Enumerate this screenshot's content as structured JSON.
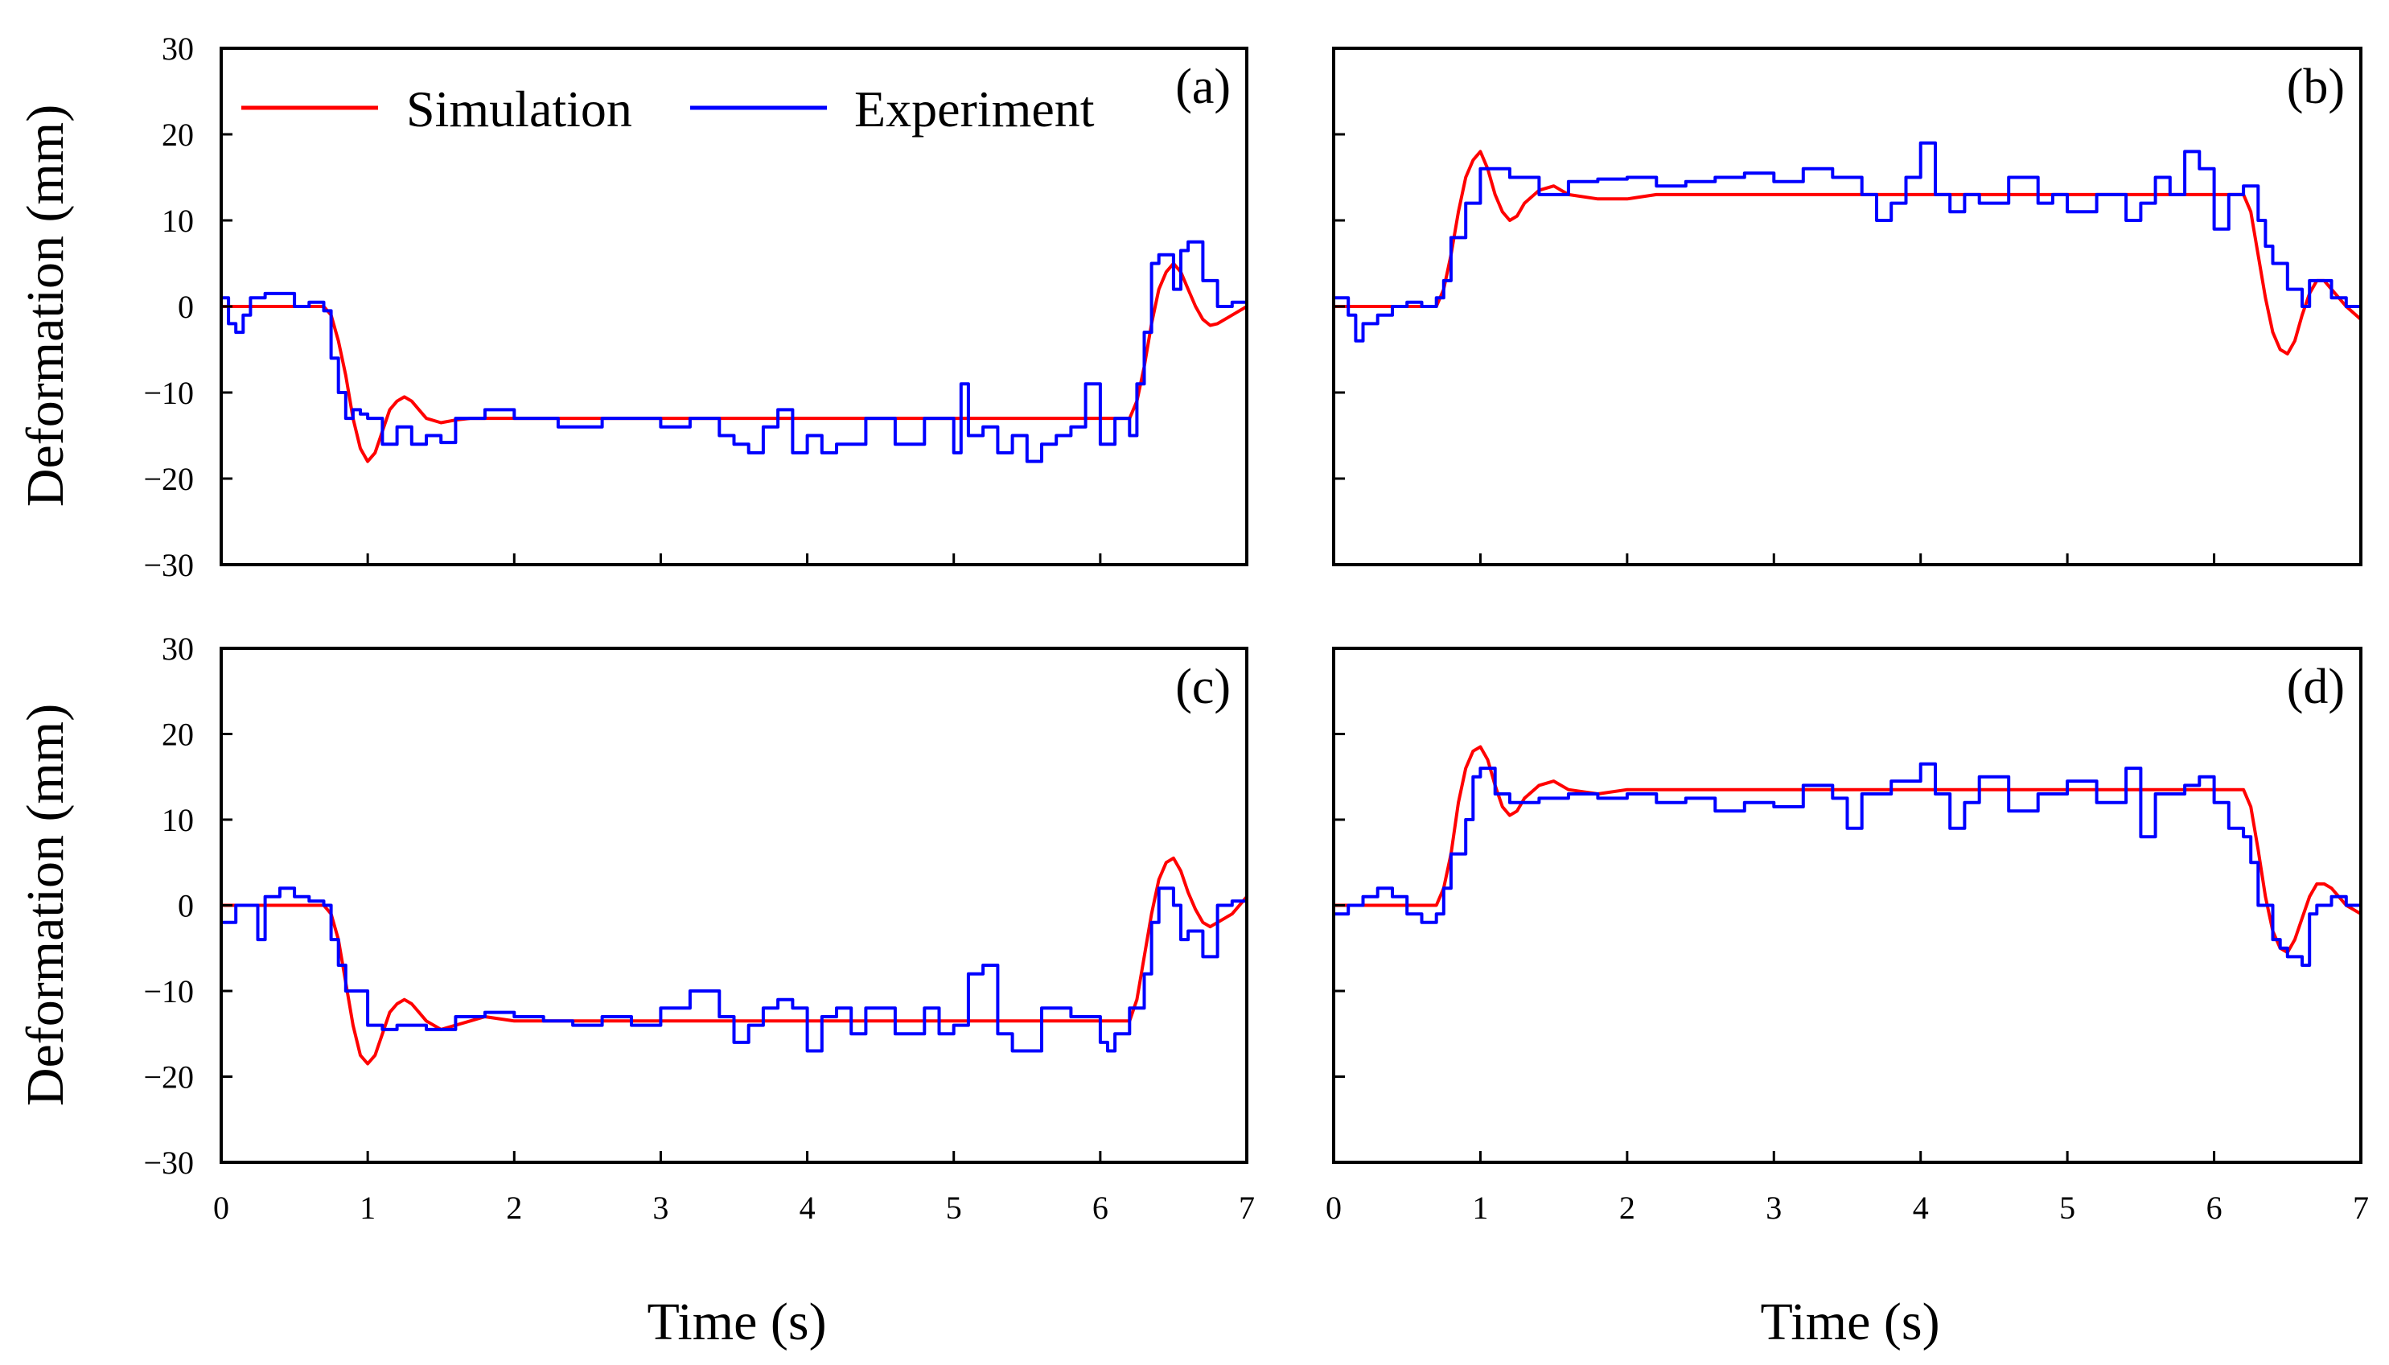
{
  "figure": {
    "legend": {
      "simulation": "Simulation",
      "experiment": "Experiment"
    },
    "colors": {
      "simulation": "#ff0000",
      "experiment": "#0000ff",
      "axis": "#000000"
    },
    "xlabel": "Time (s)",
    "ylabel": "Deformation (mm)"
  },
  "chart_data": [
    {
      "panel": "(a)",
      "type": "line",
      "xlim": [
        0,
        7
      ],
      "ylim": [
        -30,
        30
      ],
      "xticks": [
        0,
        1,
        2,
        3,
        4,
        5,
        6,
        7
      ],
      "yticks": [
        -30,
        -20,
        -10,
        0,
        10,
        20,
        30
      ],
      "xlabel": "",
      "ylabel": "Deformation (mm)",
      "series": [
        {
          "name": "Simulation",
          "step": false,
          "x": [
            0,
            0.7,
            0.75,
            0.8,
            0.85,
            0.9,
            0.95,
            1.0,
            1.05,
            1.1,
            1.15,
            1.2,
            1.25,
            1.3,
            1.35,
            1.4,
            1.5,
            1.6,
            1.7,
            1.8,
            2.0,
            6.2,
            6.25,
            6.3,
            6.35,
            6.4,
            6.45,
            6.5,
            6.55,
            6.6,
            6.65,
            6.7,
            6.75,
            6.8,
            6.9,
            7.0
          ],
          "y": [
            0,
            0,
            -1,
            -4,
            -8,
            -13,
            -16.5,
            -18,
            -17,
            -14.5,
            -12,
            -11,
            -10.5,
            -11,
            -12,
            -13,
            -13.5,
            -13.2,
            -13,
            -13,
            -13,
            -13,
            -11,
            -7,
            -2,
            2,
            4,
            5,
            4,
            2,
            0,
            -1.5,
            -2.2,
            -2,
            -1,
            0
          ]
        },
        {
          "name": "Experiment",
          "step": true,
          "x": [
            0,
            0.05,
            0.1,
            0.15,
            0.2,
            0.3,
            0.5,
            0.6,
            0.7,
            0.75,
            0.8,
            0.85,
            0.9,
            0.95,
            1.0,
            1.1,
            1.2,
            1.3,
            1.4,
            1.5,
            1.6,
            1.8,
            2.0,
            2.3,
            2.6,
            2.8,
            3.0,
            3.2,
            3.4,
            3.5,
            3.6,
            3.7,
            3.8,
            3.9,
            4.0,
            4.1,
            4.2,
            4.4,
            4.6,
            4.8,
            5.0,
            5.05,
            5.1,
            5.2,
            5.3,
            5.4,
            5.5,
            5.6,
            5.7,
            5.8,
            5.9,
            6.0,
            6.1,
            6.2,
            6.25,
            6.3,
            6.35,
            6.4,
            6.5,
            6.55,
            6.6,
            6.7,
            6.8,
            6.9,
            7.0
          ],
          "y": [
            1,
            -2,
            -3,
            -1,
            1,
            1.5,
            0,
            0.5,
            -0.5,
            -6,
            -10,
            -13,
            -12,
            -12.5,
            -13,
            -16,
            -14,
            -16,
            -15,
            -15.8,
            -13,
            -12,
            -13,
            -14,
            -13,
            -13,
            -14,
            -13,
            -15,
            -16,
            -17,
            -14,
            -12,
            -17,
            -15,
            -17,
            -16,
            -13,
            -16,
            -13,
            -17,
            -9,
            -15,
            -14,
            -17,
            -15,
            -18,
            -16,
            -15,
            -14,
            -9,
            -16,
            -13,
            -15,
            -9,
            -3,
            5,
            6,
            2,
            6.5,
            7.5,
            3,
            0,
            0.5,
            0.5
          ]
        }
      ]
    },
    {
      "panel": "(b)",
      "type": "line",
      "xlim": [
        0,
        7
      ],
      "ylim": [
        -30,
        30
      ],
      "xticks": [
        0,
        1,
        2,
        3,
        4,
        5,
        6,
        7
      ],
      "yticks": [
        -30,
        -20,
        -10,
        0,
        10,
        20,
        30
      ],
      "xlabel": "",
      "ylabel": "",
      "series": [
        {
          "name": "Simulation",
          "step": false,
          "x": [
            0,
            0.7,
            0.75,
            0.8,
            0.85,
            0.9,
            0.95,
            1.0,
            1.05,
            1.1,
            1.15,
            1.2,
            1.25,
            1.3,
            1.4,
            1.5,
            1.6,
            1.8,
            2.0,
            2.2,
            6.2,
            6.25,
            6.3,
            6.35,
            6.4,
            6.45,
            6.5,
            6.55,
            6.6,
            6.65,
            6.7,
            6.75,
            6.8,
            6.9,
            7.0
          ],
          "y": [
            0,
            0,
            2,
            6,
            11,
            15,
            17,
            18,
            16,
            13,
            11,
            10,
            10.5,
            12,
            13.5,
            14,
            13,
            12.5,
            12.5,
            13,
            13,
            11,
            6,
            1,
            -3,
            -5,
            -5.5,
            -4,
            -1,
            1.5,
            3,
            3,
            2,
            0,
            -1.5
          ]
        },
        {
          "name": "Experiment",
          "step": true,
          "x": [
            0,
            0.1,
            0.15,
            0.2,
            0.3,
            0.4,
            0.5,
            0.6,
            0.7,
            0.75,
            0.8,
            0.9,
            1.0,
            1.2,
            1.4,
            1.6,
            1.8,
            2.0,
            2.2,
            2.4,
            2.6,
            2.8,
            3.0,
            3.2,
            3.4,
            3.6,
            3.7,
            3.8,
            3.9,
            4.0,
            4.1,
            4.2,
            4.3,
            4.4,
            4.6,
            4.8,
            4.9,
            5.0,
            5.2,
            5.4,
            5.5,
            5.6,
            5.7,
            5.8,
            5.9,
            6.0,
            6.1,
            6.2,
            6.3,
            6.35,
            6.4,
            6.5,
            6.6,
            6.65,
            6.7,
            6.8,
            6.9,
            7.0
          ],
          "y": [
            1,
            -1,
            -4,
            -2,
            -1,
            0,
            0.5,
            0,
            1,
            3,
            8,
            12,
            16,
            15,
            13,
            14.5,
            14.8,
            15,
            14,
            14.5,
            15,
            15.5,
            14.5,
            16,
            15,
            13,
            10,
            12,
            15,
            19,
            13,
            11,
            13,
            12,
            15,
            12,
            13,
            11,
            13,
            10,
            12,
            15,
            13,
            18,
            16,
            9,
            13,
            14,
            10,
            7,
            5,
            2,
            0,
            3,
            3,
            1,
            0,
            -0.5
          ]
        }
      ]
    },
    {
      "panel": "(c)",
      "type": "line",
      "xlim": [
        0,
        7
      ],
      "ylim": [
        -30,
        30
      ],
      "xticks": [
        0,
        1,
        2,
        3,
        4,
        5,
        6,
        7
      ],
      "yticks": [
        -30,
        -20,
        -10,
        0,
        10,
        20,
        30
      ],
      "xlabel": "Time (s)",
      "ylabel": "Deformation (mm)",
      "series": [
        {
          "name": "Simulation",
          "step": false,
          "x": [
            0,
            0.7,
            0.75,
            0.8,
            0.85,
            0.9,
            0.95,
            1.0,
            1.05,
            1.1,
            1.15,
            1.2,
            1.25,
            1.3,
            1.35,
            1.4,
            1.5,
            1.6,
            1.7,
            1.8,
            2.0,
            6.2,
            6.25,
            6.3,
            6.35,
            6.4,
            6.45,
            6.5,
            6.55,
            6.6,
            6.65,
            6.7,
            6.75,
            6.8,
            6.9,
            7.0
          ],
          "y": [
            0,
            0,
            -1,
            -4,
            -9,
            -14,
            -17.5,
            -18.5,
            -17.5,
            -15,
            -12.5,
            -11.5,
            -11,
            -11.5,
            -12.5,
            -13.5,
            -14.5,
            -14,
            -13.5,
            -13,
            -13.5,
            -13.5,
            -11,
            -6,
            -1,
            3,
            5,
            5.5,
            4,
            1.5,
            -0.5,
            -2,
            -2.5,
            -2,
            -1,
            1
          ]
        },
        {
          "name": "Experiment",
          "step": true,
          "x": [
            0,
            0.1,
            0.2,
            0.25,
            0.3,
            0.4,
            0.5,
            0.6,
            0.7,
            0.75,
            0.8,
            0.85,
            0.9,
            1.0,
            1.1,
            1.2,
            1.4,
            1.6,
            1.8,
            2.0,
            2.2,
            2.4,
            2.6,
            2.8,
            3.0,
            3.2,
            3.4,
            3.5,
            3.6,
            3.7,
            3.8,
            3.9,
            4.0,
            4.1,
            4.2,
            4.3,
            4.4,
            4.6,
            4.8,
            4.9,
            5.0,
            5.1,
            5.2,
            5.3,
            5.4,
            5.6,
            5.8,
            6.0,
            6.05,
            6.1,
            6.2,
            6.3,
            6.35,
            6.4,
            6.5,
            6.55,
            6.6,
            6.7,
            6.8,
            6.9,
            7.0
          ],
          "y": [
            -2,
            0,
            0,
            -4,
            1,
            2,
            1,
            0.5,
            0,
            -4,
            -7,
            -10,
            -10,
            -14,
            -14.5,
            -14,
            -14.5,
            -13,
            -12.5,
            -13,
            -13.5,
            -14,
            -13,
            -14,
            -12,
            -10,
            -13,
            -16,
            -14,
            -12,
            -11,
            -12,
            -17,
            -13,
            -12,
            -15,
            -12,
            -15,
            -12,
            -15,
            -14,
            -8,
            -7,
            -15,
            -17,
            -12,
            -13,
            -16,
            -17,
            -15,
            -12,
            -8,
            -2,
            2,
            0,
            -4,
            -3,
            -6,
            0,
            0.5,
            0.5
          ]
        }
      ]
    },
    {
      "panel": "(d)",
      "type": "line",
      "xlim": [
        0,
        7
      ],
      "ylim": [
        -30,
        30
      ],
      "xticks": [
        0,
        1,
        2,
        3,
        4,
        5,
        6,
        7
      ],
      "yticks": [
        -30,
        -20,
        -10,
        0,
        10,
        20,
        30
      ],
      "xlabel": "Time (s)",
      "ylabel": "",
      "series": [
        {
          "name": "Simulation",
          "step": false,
          "x": [
            0,
            0.7,
            0.75,
            0.8,
            0.85,
            0.9,
            0.95,
            1.0,
            1.05,
            1.1,
            1.15,
            1.2,
            1.25,
            1.3,
            1.4,
            1.5,
            1.6,
            1.8,
            2.0,
            2.2,
            6.2,
            6.25,
            6.3,
            6.35,
            6.4,
            6.45,
            6.5,
            6.55,
            6.6,
            6.65,
            6.7,
            6.75,
            6.8,
            6.9,
            7.0
          ],
          "y": [
            0,
            0,
            2,
            6,
            12,
            16,
            18,
            18.5,
            17,
            14,
            11.5,
            10.5,
            11,
            12.5,
            14,
            14.5,
            13.5,
            13,
            13.5,
            13.5,
            13.5,
            11.5,
            6.5,
            1,
            -3,
            -5,
            -5.5,
            -4,
            -1.5,
            1,
            2.5,
            2.5,
            2,
            0,
            -1
          ]
        },
        {
          "name": "Experiment",
          "step": true,
          "x": [
            0,
            0.1,
            0.2,
            0.3,
            0.4,
            0.5,
            0.6,
            0.7,
            0.75,
            0.8,
            0.9,
            0.95,
            1.0,
            1.1,
            1.2,
            1.4,
            1.6,
            1.8,
            2.0,
            2.2,
            2.4,
            2.6,
            2.8,
            3.0,
            3.2,
            3.4,
            3.5,
            3.6,
            3.8,
            4.0,
            4.1,
            4.2,
            4.3,
            4.4,
            4.6,
            4.8,
            5.0,
            5.2,
            5.4,
            5.5,
            5.6,
            5.8,
            5.9,
            6.0,
            6.1,
            6.2,
            6.25,
            6.3,
            6.4,
            6.45,
            6.5,
            6.6,
            6.65,
            6.7,
            6.8,
            6.9,
            7.0
          ],
          "y": [
            -1,
            0,
            1,
            2,
            1,
            -1,
            -2,
            -1,
            2,
            6,
            10,
            15,
            16,
            13,
            12,
            12.5,
            13,
            12.5,
            13,
            12,
            12.5,
            11,
            12,
            11.5,
            14,
            12.5,
            9,
            13,
            14.5,
            16.5,
            13,
            9,
            12,
            15,
            11,
            13,
            14.5,
            12,
            16,
            8,
            13,
            14,
            15,
            12,
            9,
            8,
            5,
            0,
            -4,
            -5,
            -6,
            -7,
            -1,
            0,
            1,
            0,
            0
          ]
        }
      ]
    }
  ]
}
